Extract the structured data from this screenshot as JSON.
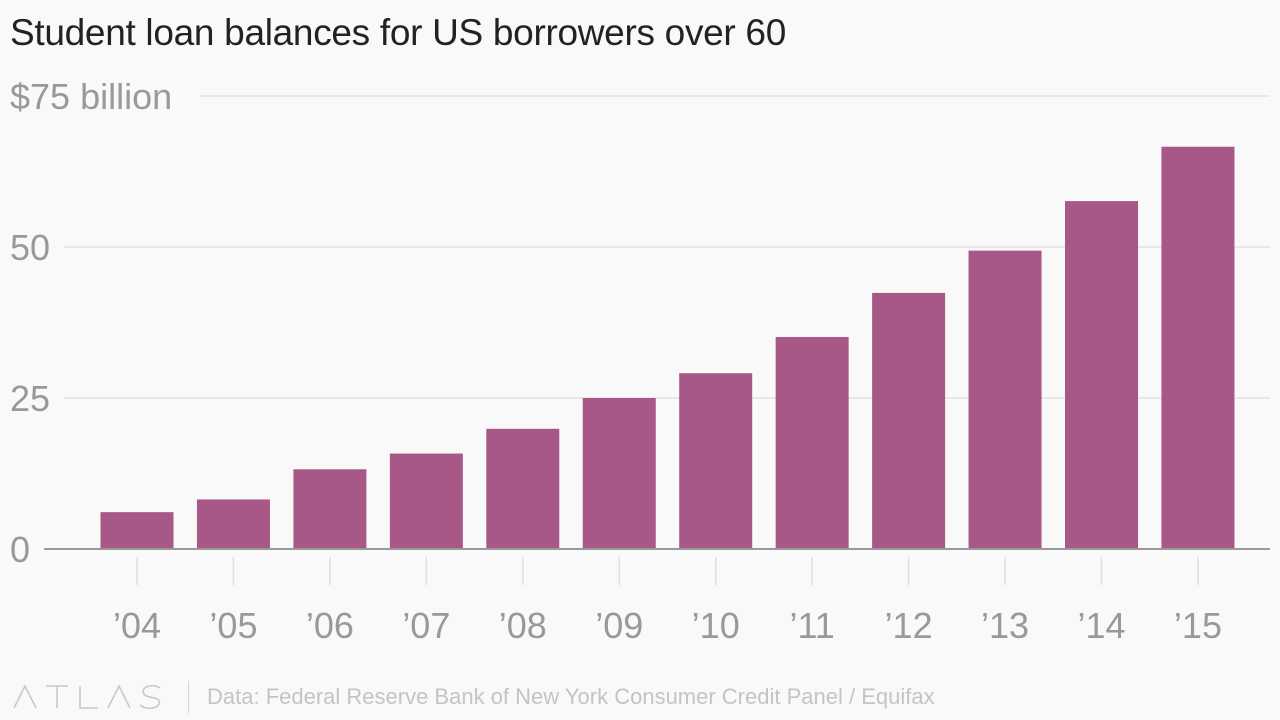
{
  "title": "Student loan balances for US borrowers over 60",
  "footer": {
    "logo_text": "ATLAS",
    "source": "Data: Federal Reserve Bank of New York Consumer Credit Panel / Equifax"
  },
  "colors": {
    "bar": "#a85886",
    "grid": "#e3e3e3",
    "axis": "#9a9a9a",
    "text_muted": "#999999"
  },
  "chart_data": {
    "type": "bar",
    "title": "Student loan balances for US borrowers over 60",
    "categories": [
      "’04",
      "’05",
      "’06",
      "’07",
      "’08",
      "’09",
      "’10",
      "’11",
      "’12",
      "’13",
      "’14",
      "’15"
    ],
    "values": [
      6.1,
      8.2,
      13.2,
      15.8,
      19.9,
      25.0,
      29.1,
      35.1,
      42.4,
      49.4,
      57.6,
      66.6
    ],
    "ylim": [
      0,
      75
    ],
    "yticks": [
      0,
      25,
      50,
      75
    ],
    "ytick_labels": [
      "0",
      "25",
      "50",
      "$75 billion"
    ],
    "grid": true,
    "legend": "none"
  }
}
